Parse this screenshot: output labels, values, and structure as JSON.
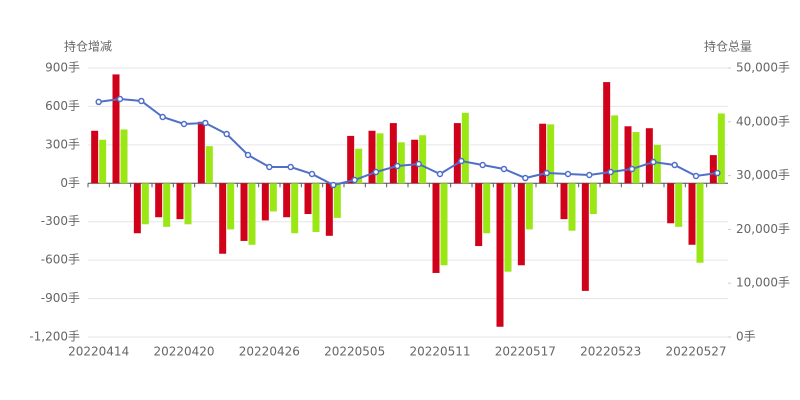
{
  "chart_data": {
    "type": "bar_line",
    "ylabel": "持仓增减",
    "y2label": "持仓总量",
    "categories": [
      "20220414",
      null,
      null,
      null,
      "20220420",
      null,
      null,
      null,
      "20220426",
      null,
      null,
      null,
      "20220505",
      null,
      null,
      null,
      "20220511",
      null,
      null,
      null,
      "20220517",
      null,
      null,
      null,
      "20220523",
      null,
      null,
      null,
      "20220527",
      null
    ],
    "series": [
      {
        "type": "bar",
        "color": "#d0021b",
        "values": [
          410,
          850,
          -390,
          -265,
          -280,
          480,
          -550,
          -450,
          -290,
          -265,
          -240,
          -410,
          370,
          410,
          470,
          340,
          -700,
          470,
          -490,
          -1120,
          -640,
          465,
          -280,
          -840,
          790,
          445,
          430,
          -312,
          -480,
          220
        ]
      },
      {
        "type": "bar",
        "color": "#9be615",
        "values": [
          340,
          420,
          -320,
          -340,
          -320,
          290,
          -360,
          -480,
          -220,
          -390,
          -380,
          -270,
          270,
          390,
          320,
          375,
          -640,
          550,
          -390,
          -690,
          -360,
          460,
          -370,
          -240,
          530,
          400,
          300,
          -340,
          -620,
          545
        ]
      },
      {
        "type": "line",
        "axis": "y2",
        "color": "#4f6fc8",
        "values": [
          43700,
          44240,
          43870,
          40890,
          39590,
          39780,
          37730,
          33830,
          31600,
          31600,
          30300,
          28250,
          29180,
          30670,
          31780,
          32160,
          30300,
          32710,
          31970,
          31230,
          29550,
          30480,
          30300,
          30110,
          30670,
          31230,
          32530,
          31970,
          29930,
          30480
        ]
      }
    ],
    "ylim": [
      -1200,
      900
    ],
    "yticks": [
      {
        "value": -1200,
        "label": "-1,200手"
      },
      {
        "value": -900,
        "label": "-900手"
      },
      {
        "value": -600,
        "label": "-600手"
      },
      {
        "value": -300,
        "label": "-300手"
      },
      {
        "value": 0,
        "label": "0手"
      },
      {
        "value": 300,
        "label": "300手"
      },
      {
        "value": 600,
        "label": "600手"
      },
      {
        "value": 900,
        "label": "900手"
      }
    ],
    "y2lim": [
      0,
      50000
    ],
    "y2ticks": [
      {
        "value": 0,
        "label": "0手"
      },
      {
        "value": 10000,
        "label": "10,000手"
      },
      {
        "value": 20000,
        "label": "20,000手"
      },
      {
        "value": 30000,
        "label": "30,000手"
      },
      {
        "value": 40000,
        "label": "40,000手"
      },
      {
        "value": 50000,
        "label": "50,000手"
      }
    ],
    "grid": true
  }
}
